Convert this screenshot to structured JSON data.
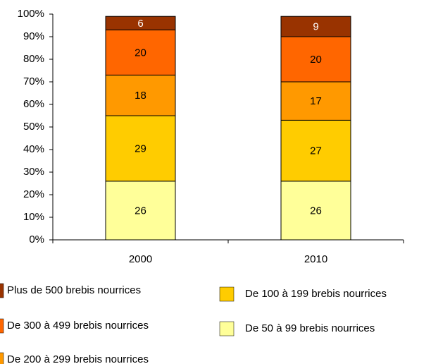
{
  "chart_data": {
    "type": "stacked_bar",
    "categories": [
      "2000",
      "2010"
    ],
    "series": [
      {
        "name": "De 50 à 99 brebis nourrices",
        "color": "#FFFF99",
        "label_color": "#000000",
        "values": [
          26,
          26
        ]
      },
      {
        "name": "De 100 à 199 brebis nourrices",
        "color": "#FFCC00",
        "label_color": "#000000",
        "values": [
          29,
          27
        ]
      },
      {
        "name": "De 200 à 299 brebis nourrices",
        "color": "#FF9900",
        "label_color": "#000000",
        "values": [
          18,
          17
        ]
      },
      {
        "name": "De 300 à 499 brebis nourrices",
        "color": "#FF6600",
        "label_color": "#000000",
        "values": [
          20,
          20
        ]
      },
      {
        "name": "Plus de 500 brebis nourrices",
        "color": "#993300",
        "label_color": "#FFFFFF",
        "values": [
          6,
          9
        ]
      }
    ],
    "ylim": [
      0,
      100
    ],
    "yticks": [
      {
        "value": 0,
        "label": "0%"
      },
      {
        "value": 10,
        "label": "10%"
      },
      {
        "value": 20,
        "label": "20%"
      },
      {
        "value": 30,
        "label": "30%"
      },
      {
        "value": 40,
        "label": "40%"
      },
      {
        "value": 50,
        "label": "50%"
      },
      {
        "value": 60,
        "label": "60%"
      },
      {
        "value": 70,
        "label": "70%"
      },
      {
        "value": 80,
        "label": "80%"
      },
      {
        "value": 90,
        "label": "90%"
      },
      {
        "value": 100,
        "label": "100%"
      }
    ],
    "grid": false
  }
}
